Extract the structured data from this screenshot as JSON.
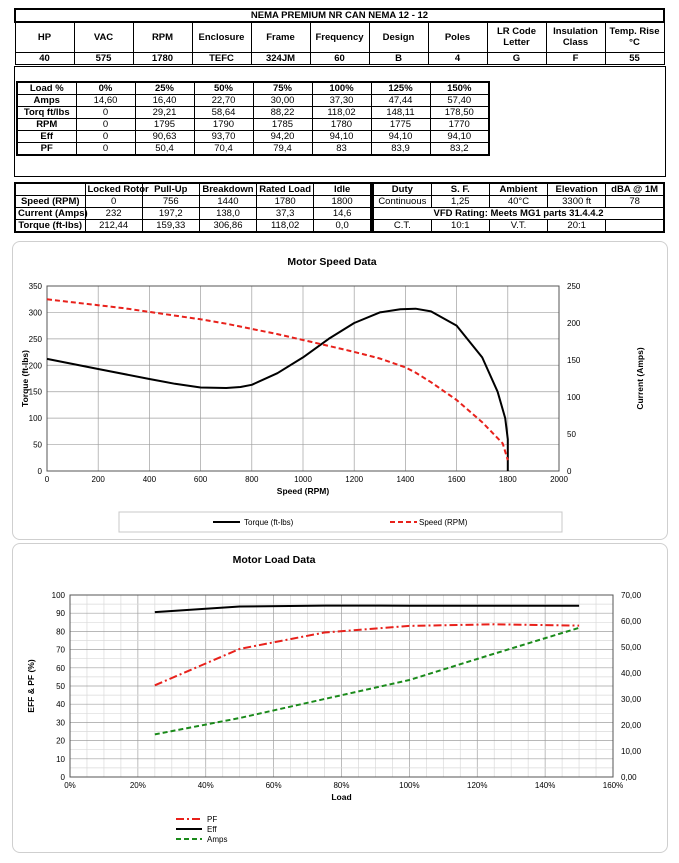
{
  "header": {
    "title": "NEMA PREMIUM NR CAN NEMA 12 - 12",
    "labels": [
      "HP",
      "VAC",
      "RPM",
      "Enclosure",
      "Frame",
      "Frequency",
      "Design",
      "Poles",
      "LR Code Letter",
      "Insulation Class",
      "Temp. Rise °C"
    ],
    "values": [
      "40",
      "575",
      "1780",
      "TEFC",
      "324JM",
      "60",
      "B",
      "4",
      "G",
      "F",
      "55"
    ]
  },
  "load_table": {
    "header": [
      "Load %",
      "0%",
      "25%",
      "50%",
      "75%",
      "100%",
      "125%",
      "150%"
    ],
    "rows": [
      [
        "Amps",
        "14,60",
        "16,40",
        "22,70",
        "30,00",
        "37,30",
        "47,44",
        "57,40"
      ],
      [
        "Torq ft/lbs",
        "0",
        "29,21",
        "58,64",
        "88,22",
        "118,02",
        "148,11",
        "178,50"
      ],
      [
        "RPM",
        "0",
        "1795",
        "1790",
        "1785",
        "1780",
        "1775",
        "1770"
      ],
      [
        "Eff",
        "0",
        "90,63",
        "93,70",
        "94,20",
        "94,10",
        "94,10",
        "94,10"
      ],
      [
        "PF",
        "0",
        "50,4",
        "70,4",
        "79,4",
        "83",
        "83,9",
        "83,2"
      ]
    ]
  },
  "perf_table": {
    "header": [
      "",
      "Locked Rotor",
      "Pull-Up",
      "Breakdown",
      "Rated Load",
      "Idle"
    ],
    "rows": [
      [
        "Speed (RPM)",
        "0",
        "756",
        "1440",
        "1780",
        "1800"
      ],
      [
        "Current (Amps)",
        "232",
        "197,2",
        "138,0",
        "37,3",
        "14,6"
      ],
      [
        "Torque (ft-lbs)",
        "212,44",
        "159,33",
        "306,86",
        "118,02",
        "0,0"
      ]
    ]
  },
  "duty_table": {
    "header": [
      "Duty",
      "S. F.",
      "Ambient",
      "Elevation",
      "dBA @ 1M"
    ],
    "row1": [
      "Continuous",
      "1,25",
      "40°C",
      "3300 ft",
      "78"
    ],
    "vfd": "VFD Rating: Meets MG1 parts 31.4.4.2",
    "row3": [
      "C.T.",
      "10:1",
      "V.T.",
      "20:1",
      ""
    ]
  },
  "chart_data": [
    {
      "type": "line",
      "title": "Motor Speed Data",
      "xlabel": "Speed (RPM)",
      "ylabel": "Torque (ft-lbs)",
      "y2label": "Current (Amps)",
      "xlim": [
        0,
        2000
      ],
      "ylim": [
        0,
        350
      ],
      "y2lim": [
        0,
        250
      ],
      "xticks": [
        0,
        200,
        400,
        600,
        800,
        1000,
        1200,
        1400,
        1600,
        1800,
        2000
      ],
      "yticks": [
        0,
        50,
        100,
        150,
        200,
        250,
        300,
        350
      ],
      "y2ticks": [
        0,
        50,
        100,
        150,
        200,
        250
      ],
      "series": [
        {
          "name": "Torque (ft-lbs)",
          "axis": "y",
          "color": "#000000",
          "dash": "",
          "x": [
            0,
            200,
            400,
            500,
            600,
            700,
            756,
            800,
            900,
            1000,
            1100,
            1200,
            1300,
            1380,
            1440,
            1500,
            1600,
            1700,
            1760,
            1790,
            1800,
            1800
          ],
          "y": [
            212,
            193,
            174,
            165,
            158,
            157,
            159,
            163,
            185,
            215,
            250,
            280,
            300,
            306,
            307,
            302,
            275,
            215,
            150,
            100,
            60,
            0
          ]
        },
        {
          "name": "Speed (RPM)",
          "axis": "y2",
          "color": "#e8211b",
          "dash": "5,3",
          "x": [
            0,
            100,
            200,
            300,
            400,
            500,
            600,
            700,
            800,
            900,
            1000,
            1100,
            1200,
            1300,
            1400,
            1440,
            1500,
            1600,
            1700,
            1780,
            1800
          ],
          "y": [
            232,
            228,
            224,
            220,
            215,
            210,
            205,
            199,
            192,
            185,
            177,
            169,
            161,
            152,
            140,
            133,
            120,
            96,
            66,
            37.3,
            14.6
          ]
        }
      ]
    },
    {
      "type": "line",
      "title": "Motor Load Data",
      "xlabel": "Load",
      "ylabel": "EFF & PF (%)",
      "xlim": [
        0,
        160
      ],
      "ylim": [
        0,
        100
      ],
      "y2lim": [
        0,
        70
      ],
      "xticks": [
        "0%",
        "20%",
        "40%",
        "60%",
        "80%",
        "100%",
        "120%",
        "140%",
        "160%"
      ],
      "yticks": [
        0,
        10,
        20,
        30,
        40,
        50,
        60,
        70,
        80,
        90,
        100
      ],
      "y2ticks": [
        "0,00",
        "10,00",
        "20,00",
        "30,00",
        "40,00",
        "50,00",
        "60,00",
        "70,00"
      ],
      "series": [
        {
          "name": "PF",
          "axis": "y",
          "color": "#e8211b",
          "dash": "8,3,2,3",
          "x": [
            25,
            50,
            75,
            100,
            125,
            150
          ],
          "y": [
            50.4,
            70.4,
            79.4,
            83,
            83.9,
            83.2
          ]
        },
        {
          "name": "Eff",
          "axis": "y",
          "color": "#000000",
          "dash": "",
          "x": [
            25,
            50,
            75,
            100,
            125,
            150
          ],
          "y": [
            90.63,
            93.7,
            94.2,
            94.1,
            94.1,
            94.1
          ]
        },
        {
          "name": "Amps",
          "axis": "y2",
          "color": "#1a8a1a",
          "dash": "5,3",
          "x": [
            25,
            50,
            75,
            100,
            125,
            150
          ],
          "y": [
            16.4,
            22.7,
            30.0,
            37.3,
            47.44,
            57.4
          ]
        }
      ]
    }
  ]
}
